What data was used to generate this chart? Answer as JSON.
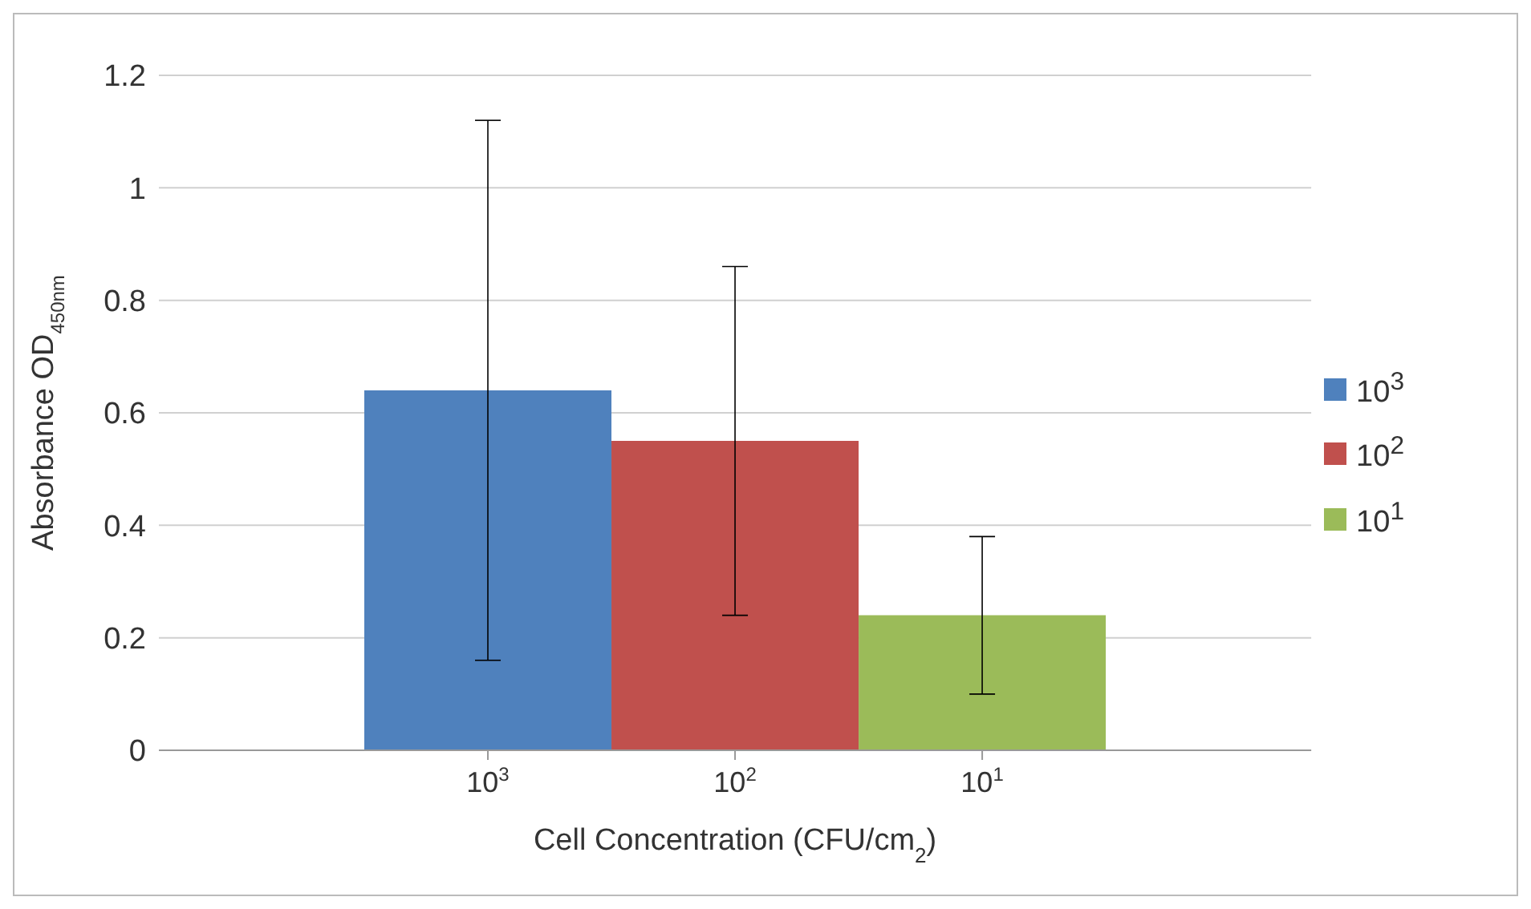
{
  "chart_data": {
    "type": "bar",
    "xlabel": "Cell Concentration (CFU/cm$_{2}$)",
    "ylabel": "Absorbance OD$_{450nm}$",
    "categories": [
      "10$^{3}$",
      "10$^{2}$",
      "10$^{1}$"
    ],
    "series": [
      {
        "name": "10$^{3}$",
        "color": "#4f81bd",
        "values": [
          0.64,
          null,
          null
        ],
        "errors": [
          0.48,
          null,
          null
        ]
      },
      {
        "name": "10$^{2}$",
        "color": "#c0504d",
        "values": [
          null,
          0.55,
          null
        ],
        "errors": [
          null,
          0.31,
          null
        ]
      },
      {
        "name": "10$^{1}$",
        "color": "#9bbb59",
        "values": [
          null,
          null,
          0.24
        ],
        "errors": [
          null,
          null,
          0.14
        ]
      }
    ],
    "ylim": [
      0,
      1.2
    ],
    "yticks": [
      0,
      0.2,
      0.4,
      0.6,
      0.8,
      1,
      1.2
    ],
    "grid": "y",
    "legend": "right"
  }
}
